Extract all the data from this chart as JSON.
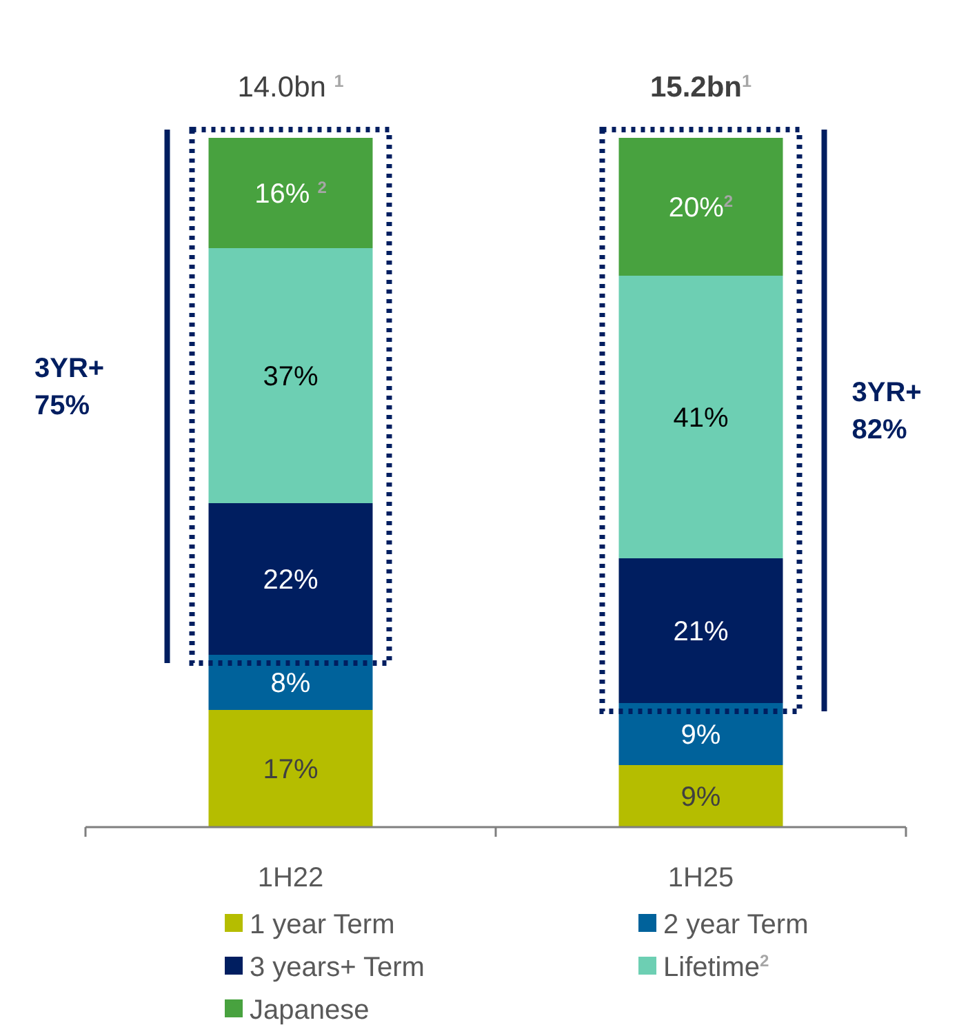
{
  "chart_data": {
    "type": "bar",
    "stacked": true,
    "categories": [
      "1H22",
      "1H25"
    ],
    "series": [
      {
        "name": "1 year Term",
        "color": "#b5bd00",
        "values": [
          17,
          9
        ],
        "value_labels": [
          "17%",
          "9%"
        ]
      },
      {
        "name": "2 year Term",
        "color": "#00629b",
        "values": [
          8,
          9
        ],
        "value_labels": [
          "8%",
          "9%"
        ]
      },
      {
        "name": "3 years+ Term",
        "color": "#001e60",
        "values": [
          22,
          21
        ],
        "value_labels": [
          "22%",
          "21%"
        ]
      },
      {
        "name": "Lifetime$^{2}$",
        "color": "#6dcfb3",
        "values": [
          37,
          41
        ],
        "value_labels": [
          "37%",
          "41%"
        ]
      },
      {
        "name": "Japanese",
        "color": "#48a23f",
        "values": [
          16,
          20
        ],
        "value_labels": [
          "16% $^{2}$",
          "20%$^{2}$"
        ]
      }
    ],
    "totals": [
      "14.0bn $^{1}$",
      "15.2bn$^{1}$"
    ],
    "annotations": [
      "3YR+ 75%",
      "3YR+ 82%"
    ],
    "legend": "bottom"
  }
}
